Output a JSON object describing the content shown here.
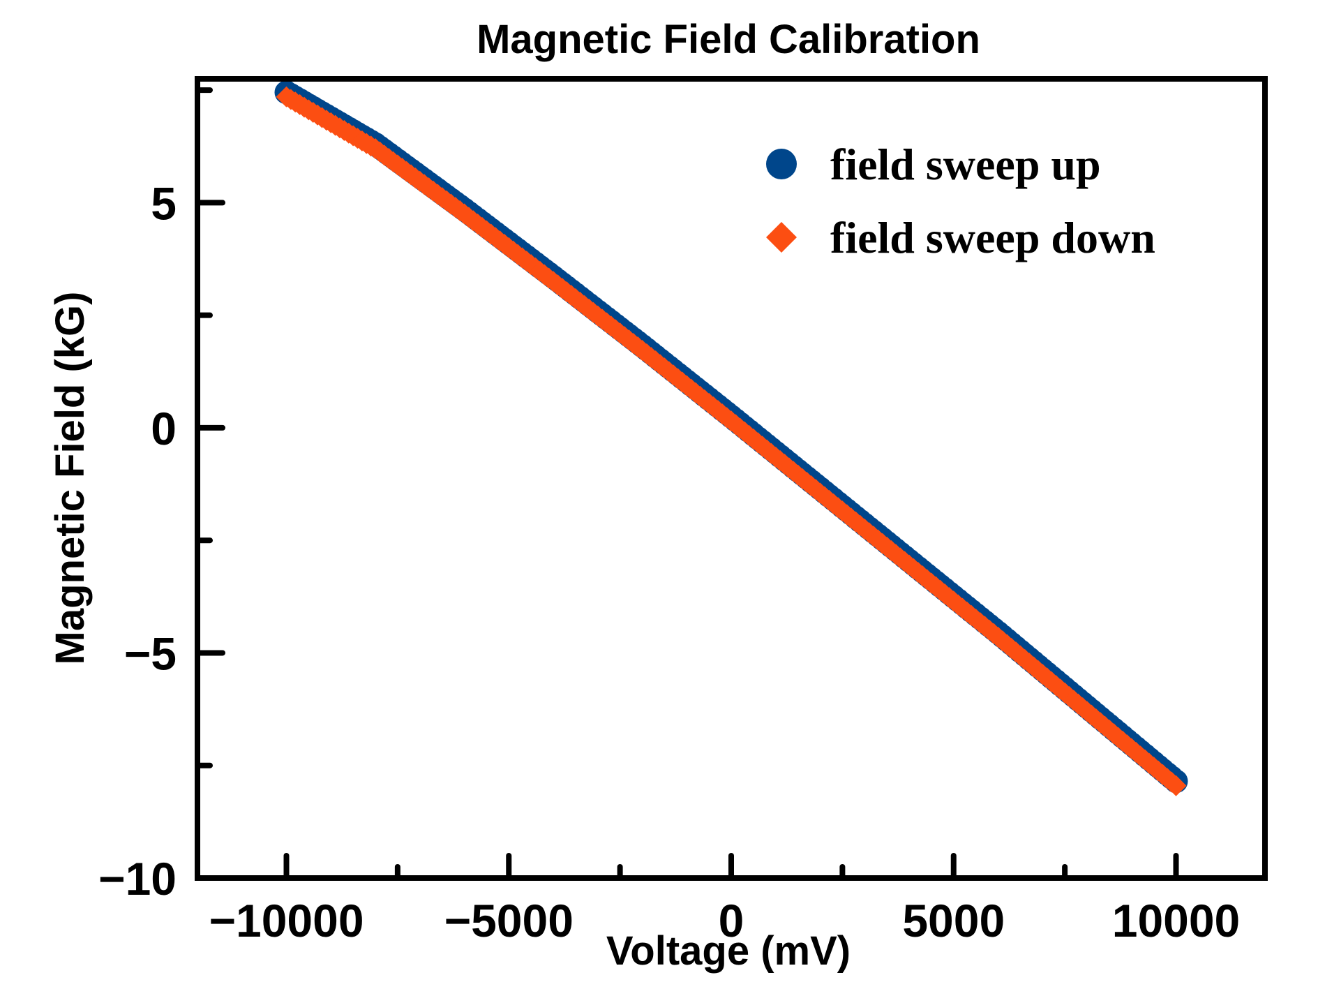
{
  "chart_data": {
    "type": "scatter",
    "title": "Magnetic Field Calibration",
    "xlabel": "Voltage (mV)",
    "ylabel": "Magnetic Field (kG)",
    "xlim": [
      -12000,
      12000
    ],
    "ylim": [
      -10,
      7.75
    ],
    "xticks_major": [
      -10000,
      -5000,
      0,
      5000,
      10000
    ],
    "xticks_major_labels": [
      "−10000",
      "−5000",
      "0",
      "5000",
      "10000"
    ],
    "xticks_minor": [
      -7500,
      -2500,
      2500,
      7500
    ],
    "yticks_major": [
      -10,
      -5,
      0,
      5
    ],
    "yticks_major_labels": [
      "−10",
      "−5",
      "0",
      "5"
    ],
    "yticks_minor": [
      -7.5,
      -2.5,
      2.5,
      7.5
    ],
    "grid": false,
    "legend_position": "top-right",
    "series": [
      {
        "name": "field sweep up",
        "marker": "circle",
        "color": "#00468b",
        "x_start": -10000,
        "x_end": 10000,
        "x_step": 100,
        "curve_points": {
          "x": [
            -10000,
            -8000,
            -6000,
            -4000,
            -2000,
            0,
            2000,
            4000,
            6000,
            8000,
            10000
          ],
          "y": [
            7.45,
            6.3,
            4.85,
            3.35,
            1.82,
            0.25,
            -1.35,
            -2.95,
            -4.55,
            -6.2,
            -7.85
          ]
        }
      },
      {
        "name": "field sweep down",
        "marker": "diamond",
        "color": "#fc4e12",
        "x_start": -10000,
        "x_end": 10000,
        "x_step": 100,
        "curve_points": {
          "x": [
            -10000,
            -8000,
            -6000,
            -4000,
            -2000,
            0,
            2000,
            4000,
            6000,
            8000,
            10000
          ],
          "y": [
            7.35,
            6.2,
            4.75,
            3.25,
            1.72,
            0.15,
            -1.45,
            -3.05,
            -4.65,
            -6.3,
            -7.95
          ]
        }
      }
    ]
  }
}
